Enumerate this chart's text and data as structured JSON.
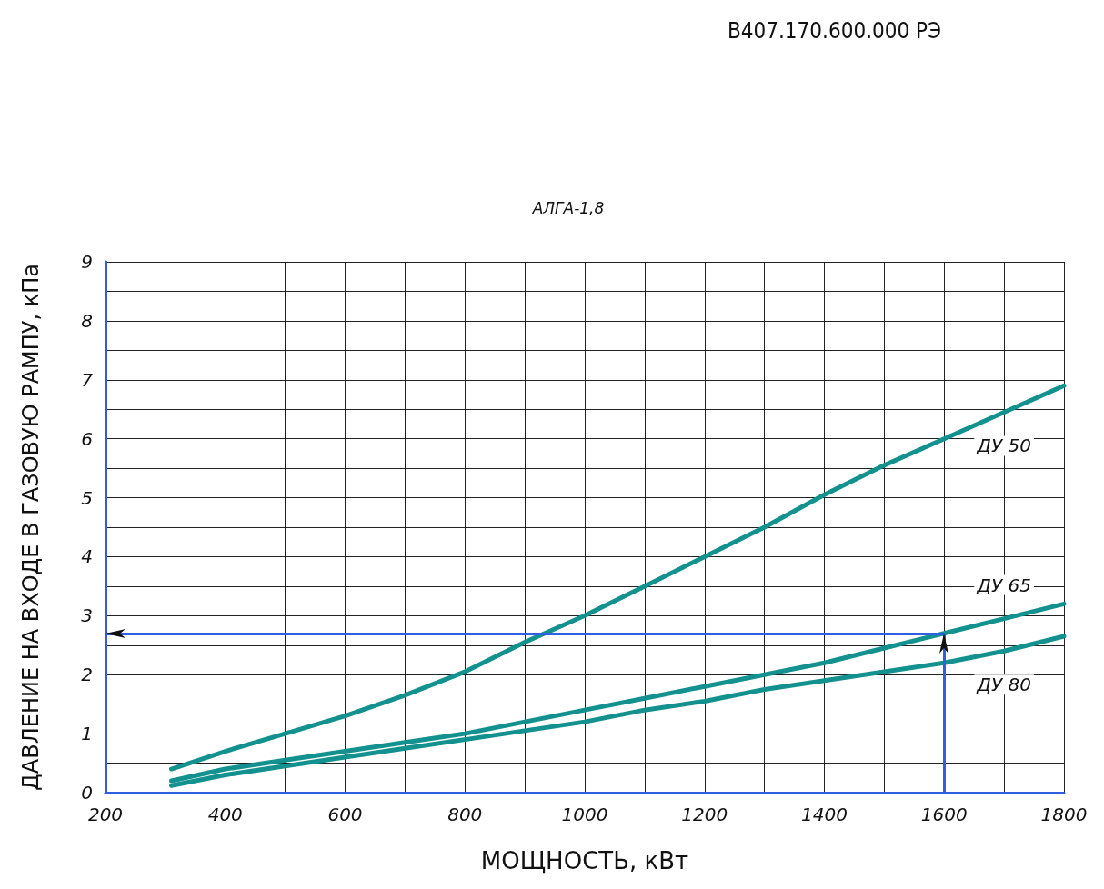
{
  "chart_data": {
    "type": "line",
    "title": "АЛГА-1,8",
    "xlabel": "МОЩНОСТЬ, кВт",
    "ylabel": "ДАВЛЕНИЕ НА ВХОДЕ В ГАЗОВУЮ РАМПУ, кПа",
    "annotations": [
      "В407.170.600.000 РЭ"
    ],
    "x": [
      310,
      400,
      500,
      600,
      700,
      800,
      900,
      1000,
      1100,
      1200,
      1300,
      1400,
      1500,
      1600,
      1700,
      1800
    ],
    "series": [
      {
        "name": "ДУ 50",
        "color": "#13918f",
        "values": [
          0.4,
          0.7,
          1.0,
          1.3,
          1.65,
          2.05,
          2.55,
          3.0,
          3.5,
          4.0,
          4.5,
          5.05,
          5.55,
          6.0,
          6.45,
          6.9
        ]
      },
      {
        "name": "ДУ 65",
        "color": "#13918f",
        "values": [
          0.2,
          0.4,
          0.55,
          0.7,
          0.85,
          1.0,
          1.2,
          1.4,
          1.6,
          1.8,
          2.0,
          2.2,
          2.45,
          2.7,
          2.95,
          3.2
        ]
      },
      {
        "name": "ДУ 80",
        "color": "#13918f",
        "values": [
          0.12,
          0.3,
          0.45,
          0.6,
          0.75,
          0.9,
          1.05,
          1.2,
          1.4,
          1.55,
          1.75,
          1.9,
          2.05,
          2.2,
          2.4,
          2.65
        ]
      }
    ],
    "xlim": [
      200,
      1800
    ],
    "xticks": [
      200,
      {
        "value": 300,
        "label": null
      },
      400,
      {
        "value": 500,
        "label": null
      },
      600,
      {
        "value": 700,
        "label": null
      },
      800,
      {
        "value": 900,
        "label": null
      },
      1000,
      {
        "value": 1100,
        "label": null
      },
      1200,
      {
        "value": 1300,
        "label": null
      },
      1400,
      {
        "value": 1500,
        "label": null
      },
      1600,
      {
        "value": 1700,
        "label": null
      },
      1800
    ],
    "ylim": [
      0,
      9
    ],
    "yticks": [
      0,
      {
        "value": 0.5,
        "label": null
      },
      1,
      {
        "value": 1.5,
        "label": null
      },
      2,
      {
        "value": 2.5,
        "label": null
      },
      3,
      {
        "value": 3.5,
        "label": null
      },
      4,
      {
        "value": 4.5,
        "label": null
      },
      5,
      {
        "value": 5.5,
        "label": null
      },
      6,
      {
        "value": 6.5,
        "label": null
      },
      7,
      {
        "value": 7.5,
        "label": null
      },
      8,
      {
        "value": 8.5,
        "label": null
      },
      9
    ],
    "grid": true,
    "ref_lines": [
      {
        "axis": "x",
        "value": 1600,
        "color": "#3060e0"
      },
      {
        "axis": "y",
        "value": 2.7,
        "color": "#3060e0"
      }
    ]
  }
}
